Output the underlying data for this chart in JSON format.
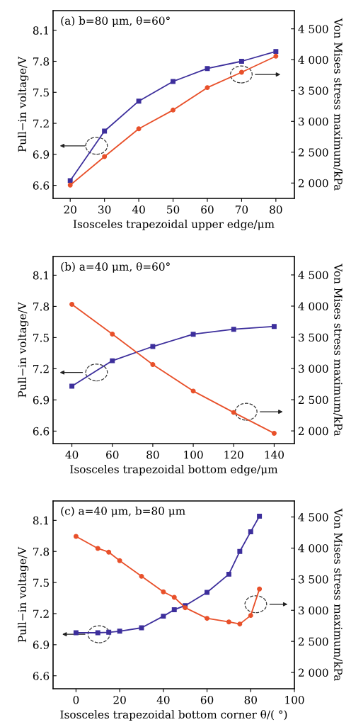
{
  "chart_data": [
    {
      "type": "line",
      "title": "(a) b=80 μm, θ=60°",
      "xlabel": "Isosceles trapezoidal upper edge/μm",
      "ylabel": "Pull−in voltage/V",
      "y2label": "Von Mises stress maximum/kPa",
      "x": [
        20,
        30,
        40,
        50,
        60,
        70,
        80
      ],
      "series": [
        {
          "color": "#3d2f9c",
          "marker": "square",
          "values": [
            6.646,
            7.125,
            7.415,
            7.605,
            7.73,
            7.8,
            7.895
          ]
        },
        {
          "color": "#e8502a",
          "marker": "circle",
          "axis": "y2",
          "values": [
            1966,
            2429,
            2880,
            3183,
            3547,
            3796,
            4056
          ]
        }
      ],
      "xlim": [
        15,
        85.4
      ],
      "xticks": [
        20,
        30,
        40,
        50,
        60,
        70,
        80
      ],
      "ylim": [
        6.474,
        8.29
      ],
      "yticks": [
        6.6,
        6.9,
        7.2,
        7.5,
        7.8,
        8.1
      ],
      "y2lim": [
        1751,
        4795
      ],
      "y2ticks": [
        {
          "value": 2000,
          "label": "2 000"
        },
        {
          "value": 2500,
          "label": "2 500"
        },
        {
          "value": 3000,
          "label": "3 000"
        },
        {
          "value": 3500,
          "label": "3 500"
        },
        {
          "value": 4000,
          "label": "4 000"
        },
        {
          "value": 4500,
          "label": "4 500"
        }
      ],
      "grid": false,
      "legend": false,
      "line_style": "solid"
    },
    {
      "type": "line",
      "title": "(b) a=40 μm, θ=60°",
      "xlabel": "Isosceles trapezoidal bottom edge/μm",
      "ylabel": "Pull−in voltage/V",
      "y2label": "Von Mises stress maximum/kPa",
      "x": [
        40,
        60,
        80,
        100,
        120,
        140
      ],
      "series": [
        {
          "color": "#3d2f9c",
          "marker": "square",
          "values": [
            7.032,
            7.277,
            7.414,
            7.532,
            7.58,
            7.607
          ]
        },
        {
          "color": "#e8502a",
          "marker": "circle",
          "axis": "y2",
          "values": [
            4029,
            3551,
            3064,
            2639,
            2295,
            1962
          ]
        }
      ],
      "xlim": [
        30.7,
        150
      ],
      "xticks": [
        40,
        60,
        80,
        100,
        120,
        140
      ],
      "ylim": [
        6.48,
        8.28
      ],
      "yticks": [
        6.6,
        6.9,
        7.2,
        7.5,
        7.8,
        8.1
      ],
      "y2lim": [
        1797,
        4795
      ],
      "y2ticks": [
        {
          "value": 2000,
          "label": "2 000"
        },
        {
          "value": 2500,
          "label": "2 500"
        },
        {
          "value": 3000,
          "label": "3 000"
        },
        {
          "value": 3500,
          "label": "3 500"
        },
        {
          "value": 4000,
          "label": "4 000"
        },
        {
          "value": 4500,
          "label": "4 500"
        }
      ],
      "grid": false,
      "legend": false,
      "line_style": "solid"
    },
    {
      "type": "line",
      "title": "(c) a=40 μm, b=80 μm",
      "xlabel": "Isosceles trapezoidal bottom corner θ/( °)",
      "ylabel": "Pull−in voltage/V",
      "y2label": "Von Mises stress maximum/kPa",
      "x": [
        0,
        10,
        15,
        20,
        30,
        40,
        45,
        50,
        60,
        70,
        75,
        80,
        84
      ],
      "series": [
        {
          "color": "#3d2f9c",
          "marker": "square",
          "values": [
            7.015,
            7.015,
            7.02,
            7.03,
            7.063,
            7.175,
            7.238,
            7.277,
            7.405,
            7.58,
            7.8,
            7.99,
            8.14
          ]
        },
        {
          "color": "#e8502a",
          "marker": "circle",
          "axis": "y2",
          "values": [
            4188,
            3995,
            3935,
            3798,
            3546,
            3296,
            3208,
            3041,
            2870,
            2813,
            2779,
            2916,
            3342
          ]
        }
      ],
      "xlim": [
        -10.5,
        100
      ],
      "xticks": [
        0,
        20,
        40,
        60,
        80,
        100
      ],
      "ylim": [
        6.475,
        8.287
      ],
      "yticks": [
        6.6,
        6.9,
        7.2,
        7.5,
        7.8,
        8.1
      ],
      "y2lim": [
        1738,
        4758
      ],
      "y2ticks": [
        {
          "value": 2000,
          "label": "2 000"
        },
        {
          "value": 2500,
          "label": "2 500"
        },
        {
          "value": 3000,
          "label": "3 000"
        },
        {
          "value": 3500,
          "label": "3 500"
        },
        {
          "value": 4000,
          "label": "4 000"
        },
        {
          "value": 4500,
          "label": "4 500"
        }
      ],
      "grid": false,
      "legend": false,
      "line_style": "solid"
    }
  ]
}
